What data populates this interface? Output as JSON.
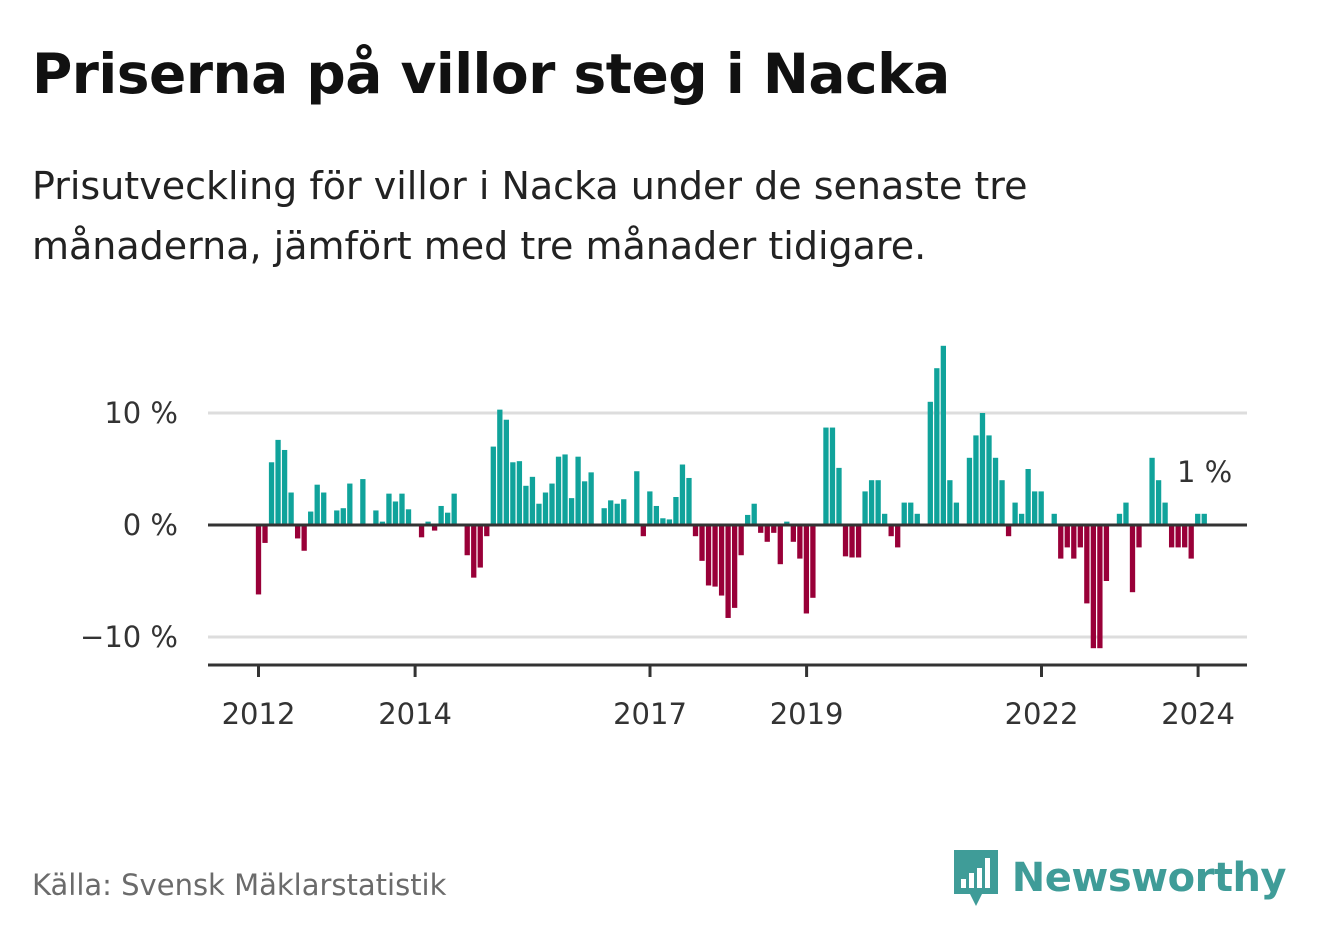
{
  "header": {
    "title": "Priserna på villor steg i Nacka",
    "subtitle": "Prisutveckling för villor i Nacka under de senaste tre månaderna, jämfört med tre månader tidigare."
  },
  "footer": {
    "source": "Källa: Svensk Mäklarstatistik",
    "brand": "Newsworthy"
  },
  "colors": {
    "positive": "#10a39b",
    "negative": "#990038",
    "gridline": "#dddddd",
    "axis": "#333333",
    "brand": "#3f9c98"
  },
  "chart_data": {
    "type": "bar",
    "title": "Priserna på villor steg i Nacka",
    "ylabel": "",
    "xlabel": "",
    "unit": "%",
    "ylim": [
      -13,
      17
    ],
    "y_ticks": [
      {
        "value": 10,
        "label": "10 %"
      },
      {
        "value": 0,
        "label": "0 %"
      },
      {
        "value": -10,
        "label": "−10 %"
      }
    ],
    "x_ticks": [
      {
        "value": 2012,
        "label": "2012"
      },
      {
        "value": 2014,
        "label": "2014"
      },
      {
        "value": 2017,
        "label": "2017"
      },
      {
        "value": 2019,
        "label": "2019"
      },
      {
        "value": 2022,
        "label": "2022"
      },
      {
        "value": 2024,
        "label": "2024"
      }
    ],
    "x_start": 2012.0,
    "x_step": 0.0833,
    "values": [
      -6.2,
      -1.6,
      5.6,
      7.6,
      6.7,
      2.9,
      -1.2,
      -2.3,
      1.2,
      3.6,
      2.9,
      0.0,
      1.3,
      1.5,
      3.7,
      0.0,
      4.1,
      0.0,
      1.3,
      0.3,
      2.8,
      2.1,
      2.8,
      1.4,
      0.0,
      -1.1,
      0.3,
      -0.5,
      1.7,
      1.1,
      2.8,
      0.0,
      -2.7,
      -4.7,
      -3.8,
      -1.0,
      7.0,
      10.3,
      9.4,
      5.6,
      5.7,
      3.5,
      4.3,
      1.9,
      2.9,
      3.7,
      6.1,
      6.3,
      2.4,
      6.1,
      3.9,
      4.7,
      0.0,
      1.5,
      2.2,
      1.9,
      2.3,
      0.0,
      4.8,
      -1.0,
      3.0,
      1.7,
      0.6,
      0.5,
      2.5,
      5.4,
      4.2,
      -1.0,
      -3.2,
      -5.4,
      -5.5,
      -6.3,
      -8.3,
      -7.4,
      -2.7,
      0.9,
      1.9,
      -0.7,
      -1.5,
      -0.7,
      -3.5,
      0.3,
      -1.5,
      -3.0,
      -7.9,
      -6.5,
      0.0,
      8.7,
      8.7,
      5.1,
      -2.8,
      -2.9,
      -2.9,
      3.0,
      4.0,
      4.0,
      1.0,
      -1.0,
      -2.0,
      2.0,
      2.0,
      1.0,
      0.0,
      11.0,
      14.0,
      16.0,
      4.0,
      2.0,
      0.0,
      6.0,
      8.0,
      10.0,
      8.0,
      6.0,
      4.0,
      -1.0,
      2.0,
      1.0,
      5.0,
      3.0,
      3.0,
      0.0,
      1.0,
      -3.0,
      -2.0,
      -3.0,
      -2.0,
      -7.0,
      -11.0,
      -11.0,
      -5.0,
      0.0,
      1.0,
      2.0,
      -6.0,
      -2.0,
      0.0,
      6.0,
      4.0,
      2.0,
      -2.0,
      -2.0,
      -2.0,
      -3.0,
      1.0,
      1.0
    ],
    "annotations": [
      {
        "label": "1 %"
      }
    ]
  }
}
